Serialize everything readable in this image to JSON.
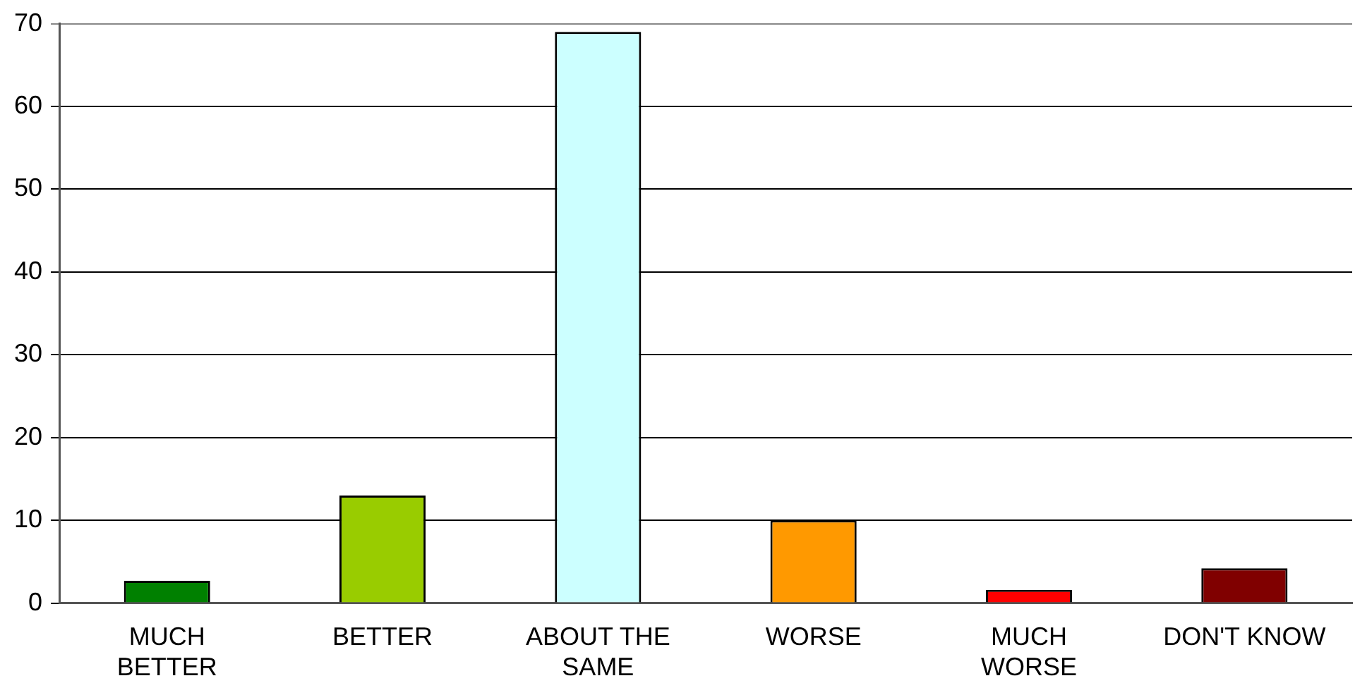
{
  "chart_data": {
    "type": "bar",
    "categories": [
      "MUCH BETTER",
      "BETTER",
      "ABOUT THE SAME",
      "WORSE",
      "MUCH WORSE",
      "DON'T KNOW"
    ],
    "values": [
      2.7,
      13,
      69,
      10,
      1.6,
      4.2
    ],
    "colors": [
      "#008000",
      "#99cc00",
      "#ccffff",
      "#ff9900",
      "#ff0000",
      "#800000"
    ],
    "ylim": [
      0,
      70
    ],
    "yticks": [
      0,
      10,
      20,
      30,
      40,
      50,
      60,
      70
    ],
    "grid": "y",
    "legend": false
  }
}
